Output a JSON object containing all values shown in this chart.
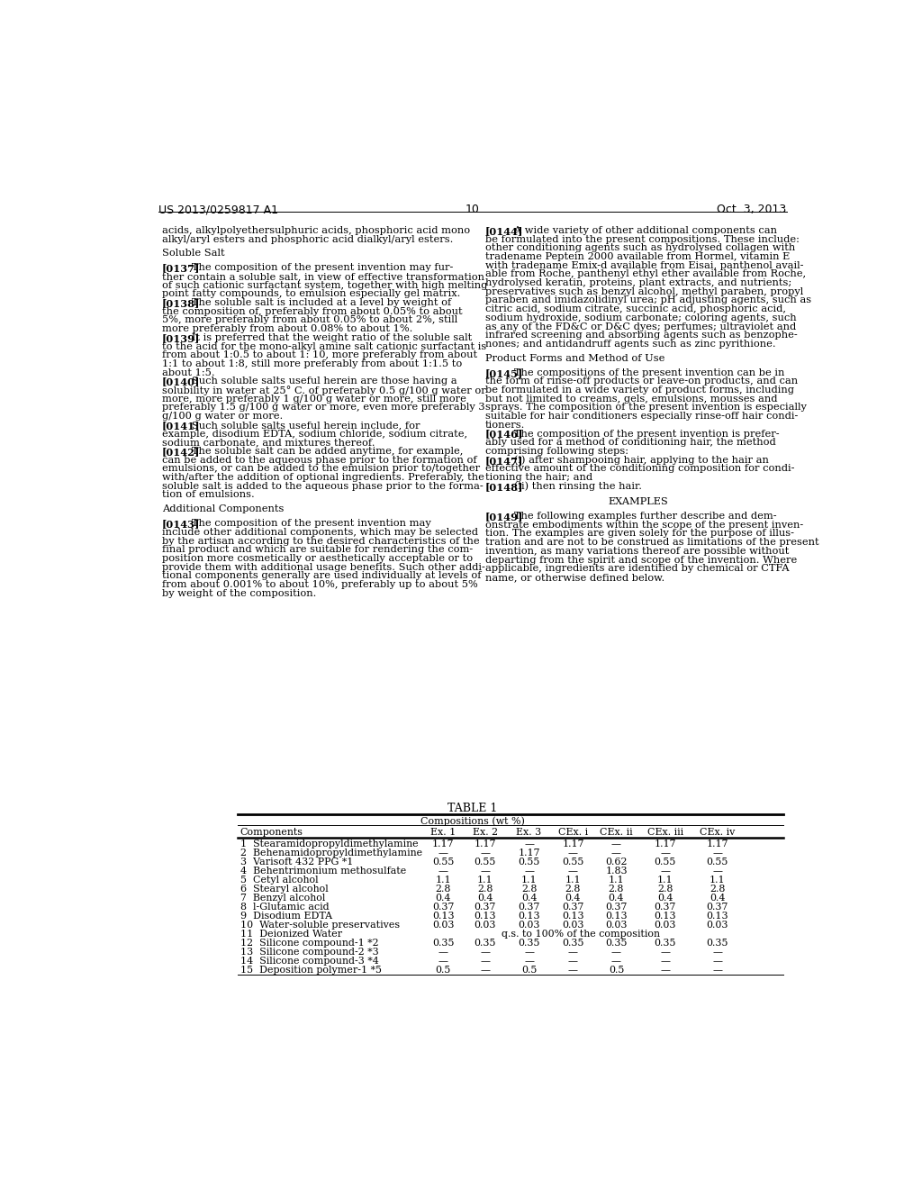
{
  "bg_color": "#ffffff",
  "header_left": "US 2013/0259817 A1",
  "header_right": "Oct. 3, 2013",
  "page_number": "10",
  "left_col": [
    {
      "type": "body",
      "lines": [
        "acids, alkylpolyethersulphuric acids, phosphoric acid mono",
        "alkyl/aryl esters and phosphoric acid dialkyl/aryl esters."
      ]
    },
    {
      "type": "gap",
      "size": 8
    },
    {
      "type": "body",
      "lines": [
        "Soluble Salt"
      ]
    },
    {
      "type": "gap",
      "size": 8
    },
    {
      "type": "tagged",
      "tag": "[0137]",
      "lines": [
        "   The composition of the present invention may fur-",
        "ther contain a soluble salt, in view of effective transformation",
        "of such cationic surfactant system, together with high melting",
        "point fatty compounds, to emulsion especially gel matrix."
      ]
    },
    {
      "type": "tagged",
      "tag": "[0138]",
      "lines": [
        "   The soluble salt is included at a level by weight of",
        "the composition of, preferably from about 0.05% to about",
        "5%, more preferably from about 0.05% to about 2%, still",
        "more preferably from about 0.08% to about 1%."
      ]
    },
    {
      "type": "tagged",
      "tag": "[0139]",
      "lines": [
        "   It is preferred that the weight ratio of the soluble salt",
        "to the acid for the mono-alkyl amine salt cationic surfactant is",
        "from about 1:0.5 to about 1: 10, more preferably from about",
        "1:1 to about 1:8, still more preferably from about 1:1.5 to",
        "about 1:5."
      ]
    },
    {
      "type": "tagged",
      "tag": "[0140]",
      "lines": [
        "   Such soluble salts useful herein are those having a",
        "solubility in water at 25° C. of preferably 0.5 g/100 g water or",
        "more, more preferably 1 g/100 g water or more, still more",
        "preferably 1.5 g/100 g water or more, even more preferably 3",
        "g/100 g water or more."
      ]
    },
    {
      "type": "tagged",
      "tag": "[0141]",
      "lines": [
        "   Such soluble salts useful herein include, for",
        "example, disodium EDTA, sodium chloride, sodium citrate,",
        "sodium carbonate, and mixtures thereof."
      ]
    },
    {
      "type": "tagged",
      "tag": "[0142]",
      "lines": [
        "   The soluble salt can be added anytime, for example,",
        "can be added to the aqueous phase prior to the formation of",
        "emulsions, or can be added to the emulsion prior to/together",
        "with/after the addition of optional ingredients. Preferably, the",
        "soluble salt is added to the aqueous phase prior to the forma-",
        "tion of emulsions."
      ]
    },
    {
      "type": "gap",
      "size": 8
    },
    {
      "type": "body",
      "lines": [
        "Additional Components"
      ]
    },
    {
      "type": "gap",
      "size": 8
    },
    {
      "type": "tagged",
      "tag": "[0143]",
      "lines": [
        "   The composition of the present invention may",
        "include other additional components, which may be selected",
        "by the artisan according to the desired characteristics of the",
        "final product and which are suitable for rendering the com-",
        "position more cosmetically or aesthetically acceptable or to",
        "provide them with additional usage benefits. Such other addi-",
        "tional components generally are used individually at levels of",
        "from about 0.001% to about 10%, preferably up to about 5%",
        "by weight of the composition."
      ]
    }
  ],
  "right_col": [
    {
      "type": "tagged",
      "tag": "[0144]",
      "lines": [
        "   A wide variety of other additional components can",
        "be formulated into the present compositions. These include:",
        "other conditioning agents such as hydrolysed collagen with",
        "tradename Peptein 2000 available from Hormel, vitamin E",
        "with tradename Emix-d available from Eisai, panthenol avail-",
        "able from Roche, panthenyl ethyl ether available from Roche,",
        "hydrolysed keratin, proteins, plant extracts, and nutrients;",
        "preservatives such as benzyl alcohol, methyl paraben, propyl",
        "paraben and imidazolidinyl urea; pH adjusting agents, such as",
        "citric acid, sodium citrate, succinic acid, phosphoric acid,",
        "sodium hydroxide, sodium carbonate; coloring agents, such",
        "as any of the FD&C or D&C dyes; perfumes; ultraviolet and",
        "infrared screening and absorbing agents such as benzophe-",
        "nones; and antidandruff agents such as zinc pyrithione."
      ]
    },
    {
      "type": "gap",
      "size": 8
    },
    {
      "type": "body",
      "lines": [
        "Product Forms and Method of Use"
      ]
    },
    {
      "type": "gap",
      "size": 8
    },
    {
      "type": "tagged",
      "tag": "[0145]",
      "lines": [
        "   The compositions of the present invention can be in",
        "the form of rinse-off products or leave-on products, and can",
        "be formulated in a wide variety of product forms, including",
        "but not limited to creams, gels, emulsions, mousses and",
        "sprays. The composition of the present invention is especially",
        "suitable for hair conditioners especially rinse-off hair condi-",
        "tioners."
      ]
    },
    {
      "type": "tagged",
      "tag": "[0146]",
      "lines": [
        "   The composition of the present invention is prefer-",
        "ably used for a method of conditioning hair, the method",
        "comprising following steps:"
      ]
    },
    {
      "type": "tagged",
      "tag": "[0147]",
      "lines": [
        "   (i) after shampooing hair, applying to the hair an",
        "effective amount of the conditioning composition for condi-",
        "tioning the hair; and"
      ]
    },
    {
      "type": "tagged",
      "tag": "[0148]",
      "lines": [
        "   (ii) then rinsing the hair."
      ]
    },
    {
      "type": "gap",
      "size": 10
    },
    {
      "type": "center",
      "lines": [
        "EXAMPLES"
      ]
    },
    {
      "type": "gap",
      "size": 8
    },
    {
      "type": "tagged",
      "tag": "[0149]",
      "lines": [
        "   The following examples further describe and dem-",
        "onstrate embodiments within the scope of the present inven-",
        "tion. The examples are given solely for the purpose of illus-",
        "tration and are not to be construed as limitations of the present",
        "invention, as many variations thereof are possible without",
        "departing from the spirit and scope of the invention. Where",
        "applicable, ingredients are identified by chemical or CTFA",
        "name, or otherwise defined below."
      ]
    }
  ],
  "table_title": "TABLE 1",
  "table_subtitle": "Compositions (wt %)",
  "table_headers": [
    "Components",
    "Ex. 1",
    "Ex. 2",
    "Ex. 3",
    "CEx. i",
    "CEx. ii",
    "CEx. iii",
    "CEx. iv"
  ],
  "table_rows": [
    [
      "1  Stearamidopropyldimethylamine",
      "1.17",
      "1.17",
      "—",
      "1.17",
      "—",
      "1.17",
      "1.17"
    ],
    [
      "2  Behenamidopropyldimethylamine",
      "—",
      "—",
      "1.17",
      "—",
      "—",
      "—",
      "—"
    ],
    [
      "3  Varisoft 432 PPG *1",
      "0.55",
      "0.55",
      "0.55",
      "0.55",
      "0.62",
      "0.55",
      "0.55"
    ],
    [
      "4  Behentrimonium methosulfate",
      "—",
      "—",
      "—",
      "—",
      "1.83",
      "—",
      "—"
    ],
    [
      "5  Cetyl alcohol",
      "1.1",
      "1.1",
      "1.1",
      "1.1",
      "1.1",
      "1.1",
      "1.1"
    ],
    [
      "6  Stearyl alcohol",
      "2.8",
      "2.8",
      "2.8",
      "2.8",
      "2.8",
      "2.8",
      "2.8"
    ],
    [
      "7  Benzyl alcohol",
      "0.4",
      "0.4",
      "0.4",
      "0.4",
      "0.4",
      "0.4",
      "0.4"
    ],
    [
      "8  l-Glutamic acid",
      "0.37",
      "0.37",
      "0.37",
      "0.37",
      "0.37",
      "0.37",
      "0.37"
    ],
    [
      "9  Disodium EDTA",
      "0.13",
      "0.13",
      "0.13",
      "0.13",
      "0.13",
      "0.13",
      "0.13"
    ],
    [
      "10  Water-soluble preservatives",
      "0.03",
      "0.03",
      "0.03",
      "0.03",
      "0.03",
      "0.03",
      "0.03"
    ],
    [
      "11  Deionized Water",
      "q.s. to 100% of the composition",
      "",
      "",
      "",
      "",
      "",
      ""
    ],
    [
      "12  Silicone compound-1 *2",
      "0.35",
      "0.35",
      "0.35",
      "0.35",
      "0.35",
      "0.35",
      "0.35"
    ],
    [
      "13  Silicone compound-2 *3",
      "—",
      "—",
      "—",
      "—",
      "—",
      "—",
      "—"
    ],
    [
      "14  Silicone compound-3 *4",
      "—",
      "—",
      "—",
      "—",
      "—",
      "—",
      "—"
    ],
    [
      "15  Deposition polymer-1 *5",
      "0.5",
      "—",
      "0.5",
      "—",
      "0.5",
      "—",
      "—"
    ]
  ]
}
